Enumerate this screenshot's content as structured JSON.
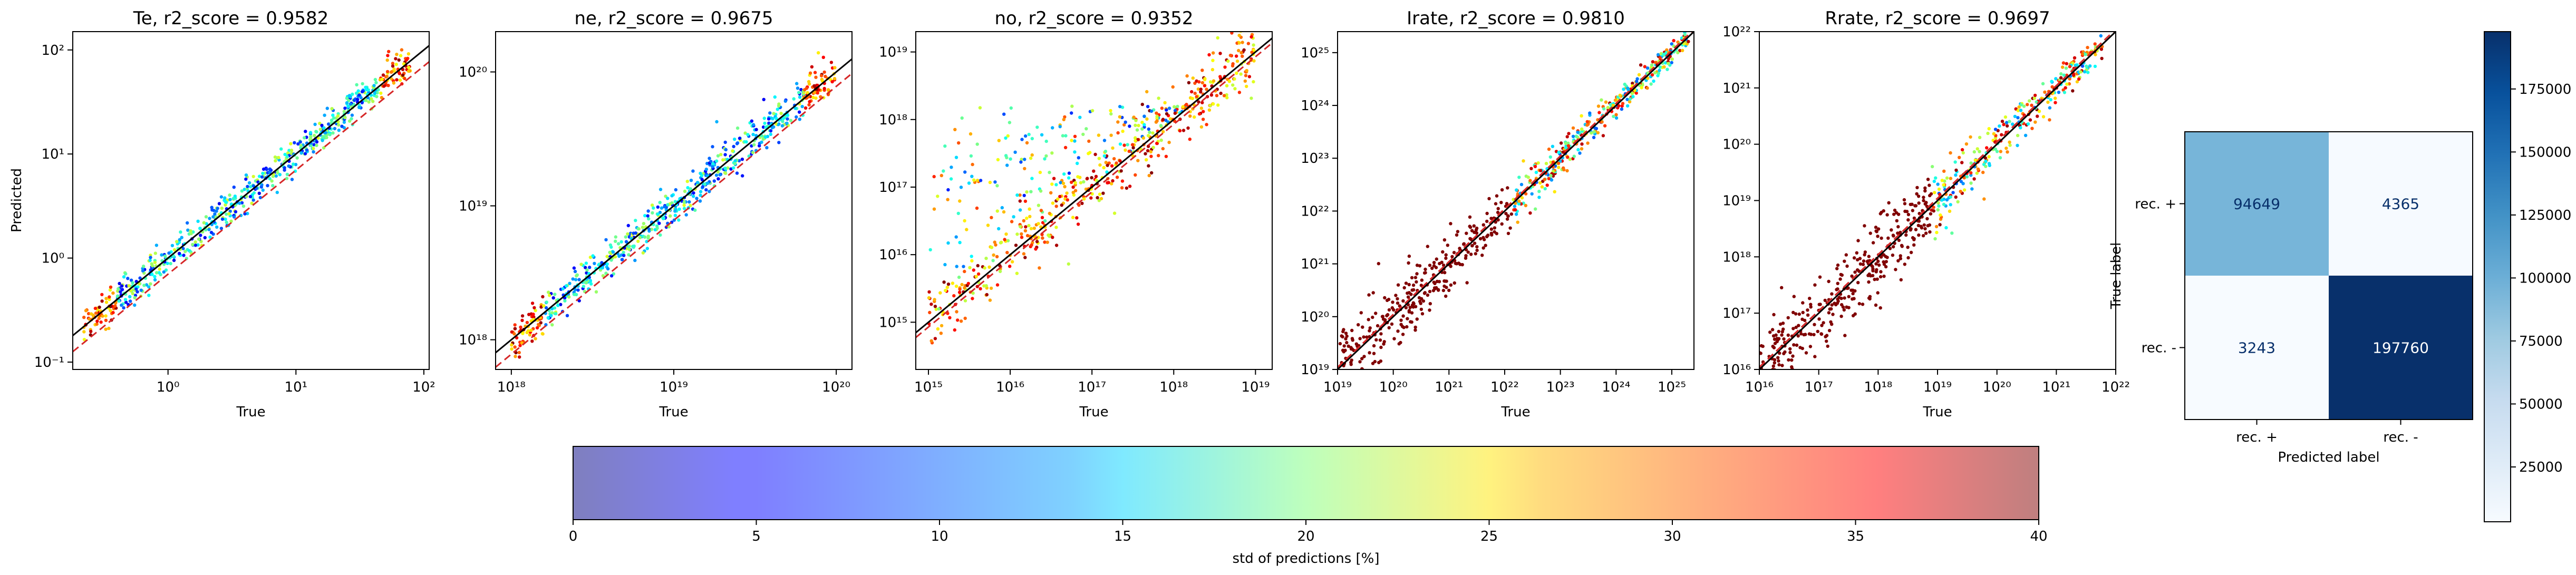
{
  "chart_data": [
    {
      "type": "scatter",
      "title": "Te, r2_score = 0.9582",
      "xlabel": "True",
      "ylabel": "Predicted",
      "xscale": "log",
      "yscale": "log",
      "xlim": [
        0.18,
        110
      ],
      "ylim": [
        0.085,
        150
      ],
      "xticks": [
        {
          "value": 1,
          "label": "10⁰"
        },
        {
          "value": 10,
          "label": "10¹"
        },
        {
          "value": 100,
          "label": "10²"
        }
      ],
      "yticks": [
        {
          "value": 0.1,
          "label": "10⁻¹"
        },
        {
          "value": 1,
          "label": "10⁰"
        },
        {
          "value": 10,
          "label": "10¹"
        },
        {
          "value": 100,
          "label": "10²"
        }
      ],
      "x_data_range": [
        0.22,
        80
      ],
      "spread_log": 0.08,
      "identity_line_color": "#000000",
      "reference_line": {
        "style": "dashed",
        "color": "#d62728",
        "factor": 0.7
      },
      "color_by": "std of predictions [%]"
    },
    {
      "type": "scatter",
      "title": "ne, r2_score = 0.9675",
      "xlabel": "True",
      "ylabel": "",
      "xscale": "log",
      "yscale": "log",
      "xlim": [
        8e+17,
        1.25e+20
      ],
      "ylim": [
        6e+17,
        2e+20
      ],
      "xticks": [
        {
          "value": 1e+18,
          "label": "10¹⁸"
        },
        {
          "value": 1e+19,
          "label": "10¹⁹"
        },
        {
          "value": 1e+20,
          "label": "10²⁰"
        }
      ],
      "yticks": [
        {
          "value": 1e+18,
          "label": "10¹⁸"
        },
        {
          "value": 1e+19,
          "label": "10¹⁹"
        },
        {
          "value": 1e+20,
          "label": "10²⁰"
        }
      ],
      "x_data_range": [
        1e+18,
        1e+20
      ],
      "spread_log": 0.07,
      "identity_line_color": "#000000",
      "reference_line": {
        "style": "dashed",
        "color": "#d62728",
        "factor": 0.78
      },
      "color_by": "std of predictions [%]"
    },
    {
      "type": "scatter",
      "title": "no, r2_score = 0.9352",
      "xlabel": "True",
      "ylabel": "",
      "xscale": "log",
      "yscale": "log",
      "xlim": [
        700000000000000.0,
        1.6e+19
      ],
      "ylim": [
        200000000000000.0,
        2e+19
      ],
      "xticks": [
        {
          "value": 1000000000000000.0,
          "label": "10¹⁵"
        },
        {
          "value": 1e+16,
          "label": "10¹⁶"
        },
        {
          "value": 1e+17,
          "label": "10¹⁷"
        },
        {
          "value": 1e+18,
          "label": "10¹⁸"
        },
        {
          "value": 1e+19,
          "label": "10¹⁹"
        }
      ],
      "yticks": [
        {
          "value": 1000000000000000.0,
          "label": "10¹⁵"
        },
        {
          "value": 1e+16,
          "label": "10¹⁶"
        },
        {
          "value": 1e+17,
          "label": "10¹⁷"
        },
        {
          "value": 1e+18,
          "label": "10¹⁸"
        },
        {
          "value": 1e+19,
          "label": "10¹⁹"
        }
      ],
      "x_data_range": [
        1000000000000000.0,
        1e+19
      ],
      "spread_log": 0.25,
      "plateau_log": 18.2,
      "identity_line_color": "#000000",
      "reference_line": {
        "style": "dashed",
        "color": "#d62728",
        "factor": 0.85
      },
      "color_by": "std of predictions [%]"
    },
    {
      "type": "scatter",
      "title": "Irate, r2_score = 0.9810",
      "xlabel": "True",
      "ylabel": "",
      "xscale": "log",
      "yscale": "log",
      "xlim": [
        1e+19,
        2.5e+25
      ],
      "ylim": [
        1e+19,
        2.5e+25
      ],
      "xticks": [
        {
          "value": 1e+19,
          "label": "10¹⁹"
        },
        {
          "value": 1e+20,
          "label": "10²⁰"
        },
        {
          "value": 1e+21,
          "label": "10²¹"
        },
        {
          "value": 1e+22,
          "label": "10²²"
        },
        {
          "value": 1e+23,
          "label": "10²³"
        },
        {
          "value": 1e+24,
          "label": "10²⁴"
        },
        {
          "value": 1e+25,
          "label": "10²⁵"
        }
      ],
      "yticks": [
        {
          "value": 1e+19,
          "label": "10¹⁹"
        },
        {
          "value": 1e+20,
          "label": "10²⁰"
        },
        {
          "value": 1e+21,
          "label": "10²¹"
        },
        {
          "value": 1e+22,
          "label": "10²²"
        },
        {
          "value": 1e+23,
          "label": "10²³"
        },
        {
          "value": 1e+24,
          "label": "10²⁴"
        },
        {
          "value": 1e+25,
          "label": "10²⁵"
        }
      ],
      "x_data_range": [
        1e+19,
        2e+25
      ],
      "spread_log": 0.3,
      "identity_line_color": "#000000",
      "reference_line": {
        "style": "dashed",
        "color": "#d62728",
        "factor": 1.1
      },
      "color_by": "std of predictions [%]"
    },
    {
      "type": "scatter",
      "title": "Rrate, r2_score = 0.9697",
      "xlabel": "True",
      "ylabel": "",
      "xscale": "log",
      "yscale": "log",
      "xlim": [
        1e+16,
        1e+22
      ],
      "ylim": [
        1e+16,
        1e+22
      ],
      "xticks": [
        {
          "value": 1e+16,
          "label": "10¹⁶"
        },
        {
          "value": 1e+17,
          "label": "10¹⁷"
        },
        {
          "value": 1e+18,
          "label": "10¹⁸"
        },
        {
          "value": 1e+19,
          "label": "10¹⁹"
        },
        {
          "value": 1e+20,
          "label": "10²⁰"
        },
        {
          "value": 1e+21,
          "label": "10²¹"
        },
        {
          "value": 1e+22,
          "label": "10²²"
        }
      ],
      "yticks": [
        {
          "value": 1e+16,
          "label": "10¹⁶"
        },
        {
          "value": 1e+17,
          "label": "10¹⁷"
        },
        {
          "value": 1e+18,
          "label": "10¹⁸"
        },
        {
          "value": 1e+19,
          "label": "10¹⁹"
        },
        {
          "value": 1e+20,
          "label": "10²⁰"
        },
        {
          "value": 1e+21,
          "label": "10²¹"
        },
        {
          "value": 1e+22,
          "label": "10²²"
        }
      ],
      "x_data_range": [
        1e+16,
        6e+21
      ],
      "spread_log": 0.35,
      "identity_line_color": "#000000",
      "reference_line": {
        "style": "dashed",
        "color": "#d62728",
        "factor": 1.1
      },
      "color_by": "std of predictions [%]"
    },
    {
      "type": "heatmap",
      "title": "",
      "xlabel": "Predicted label",
      "ylabel": "True label",
      "x_categories": [
        "rec. +",
        "rec. -"
      ],
      "y_categories": [
        "rec. +",
        "rec. -"
      ],
      "values": [
        [
          94649,
          4365
        ],
        [
          3243,
          197760
        ]
      ],
      "colormap": "Blues",
      "colorbar_range": [
        3243,
        197760
      ],
      "colorbar_ticks": [
        25000,
        50000,
        75000,
        100000,
        125000,
        150000,
        175000
      ],
      "text_colors": {
        "light_cell": "#08306b",
        "dark_cell": "#ffffff"
      }
    }
  ],
  "colorbar": {
    "label": "std of predictions [%]",
    "range": [
      0,
      40
    ],
    "ticks": [
      0,
      5,
      10,
      15,
      20,
      25,
      30,
      35,
      40
    ],
    "colormap": "jet",
    "alpha": 0.5
  }
}
